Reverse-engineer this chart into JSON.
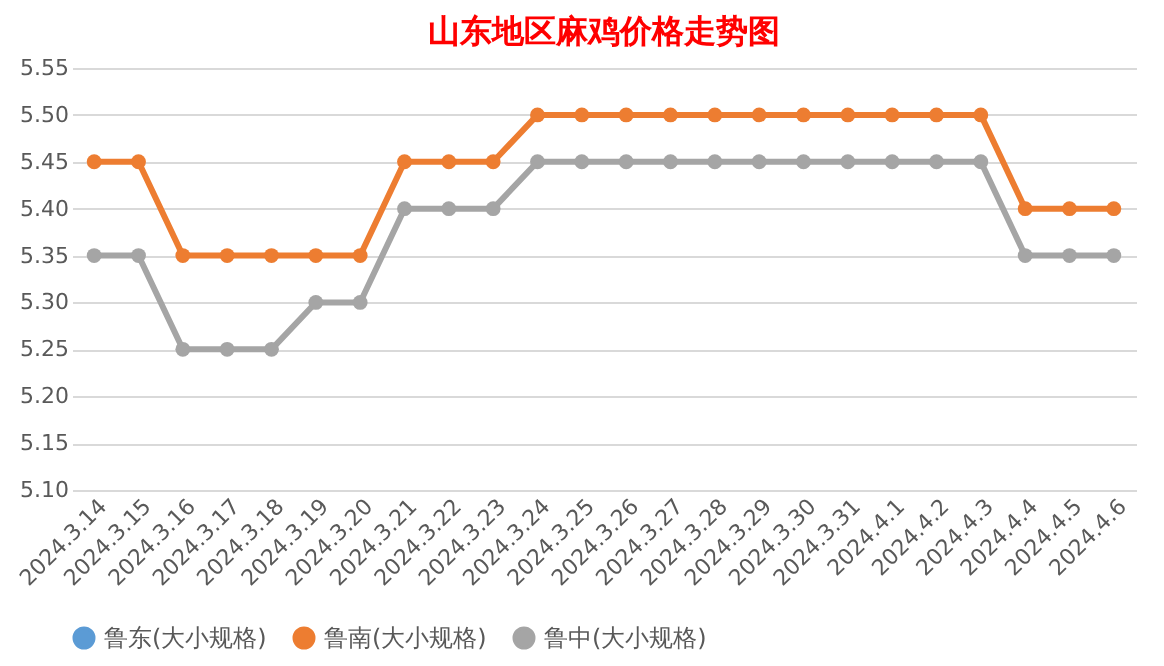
{
  "chart_data": {
    "type": "line",
    "title": "山东地区麻鸡价格走势图",
    "categories": [
      "2024.3.14",
      "2024.3.15",
      "2024.3.16",
      "2024.3.17",
      "2024.3.18",
      "2024.3.19",
      "2024.3.20",
      "2024.3.21",
      "2024.3.22",
      "2024.3.23",
      "2024.3.24",
      "2024.3.25",
      "2024.3.26",
      "2024.3.27",
      "2024.3.28",
      "2024.3.29",
      "2024.3.30",
      "2024.3.31",
      "2024.4.1",
      "2024.4.2",
      "2024.4.3",
      "2024.4.4",
      "2024.4.5",
      "2024.4.6"
    ],
    "series": [
      {
        "name": "鲁东(大小规格)",
        "color": "#5b9bd5",
        "values": [
          null,
          null,
          null,
          null,
          null,
          null,
          null,
          null,
          null,
          null,
          null,
          null,
          null,
          null,
          null,
          null,
          null,
          null,
          null,
          null,
          null,
          null,
          null,
          null
        ]
      },
      {
        "name": "鲁南(大小规格)",
        "color": "#ed7d31",
        "values": [
          5.45,
          5.45,
          5.35,
          5.35,
          5.35,
          5.35,
          5.35,
          5.45,
          5.45,
          5.45,
          5.5,
          5.5,
          5.5,
          5.5,
          5.5,
          5.5,
          5.5,
          5.5,
          5.5,
          5.5,
          5.5,
          5.4,
          5.4,
          5.4
        ]
      },
      {
        "name": "鲁中(大小规格)",
        "color": "#a5a5a5",
        "values": [
          5.35,
          5.35,
          5.25,
          5.25,
          5.25,
          5.3,
          5.3,
          5.4,
          5.4,
          5.4,
          5.45,
          5.45,
          5.45,
          5.45,
          5.45,
          5.45,
          5.45,
          5.45,
          5.45,
          5.45,
          5.45,
          5.35,
          5.35,
          5.35
        ]
      }
    ],
    "ylim": [
      5.1,
      5.55
    ],
    "yticks": [
      {
        "value": 5.1,
        "label": "5.10"
      },
      {
        "value": 5.15,
        "label": "5.15"
      },
      {
        "value": 5.2,
        "label": "5.20"
      },
      {
        "value": 5.25,
        "label": "5.25"
      },
      {
        "value": 5.3,
        "label": "5.30"
      },
      {
        "value": 5.35,
        "label": "5.35"
      },
      {
        "value": 5.4,
        "label": "5.40"
      },
      {
        "value": 5.45,
        "label": "5.45"
      },
      {
        "value": 5.5,
        "label": "5.50"
      },
      {
        "value": 5.55,
        "label": "5.55"
      }
    ],
    "grid": "y",
    "legend": "bottom",
    "marker": "circle",
    "line_style": "solid"
  }
}
